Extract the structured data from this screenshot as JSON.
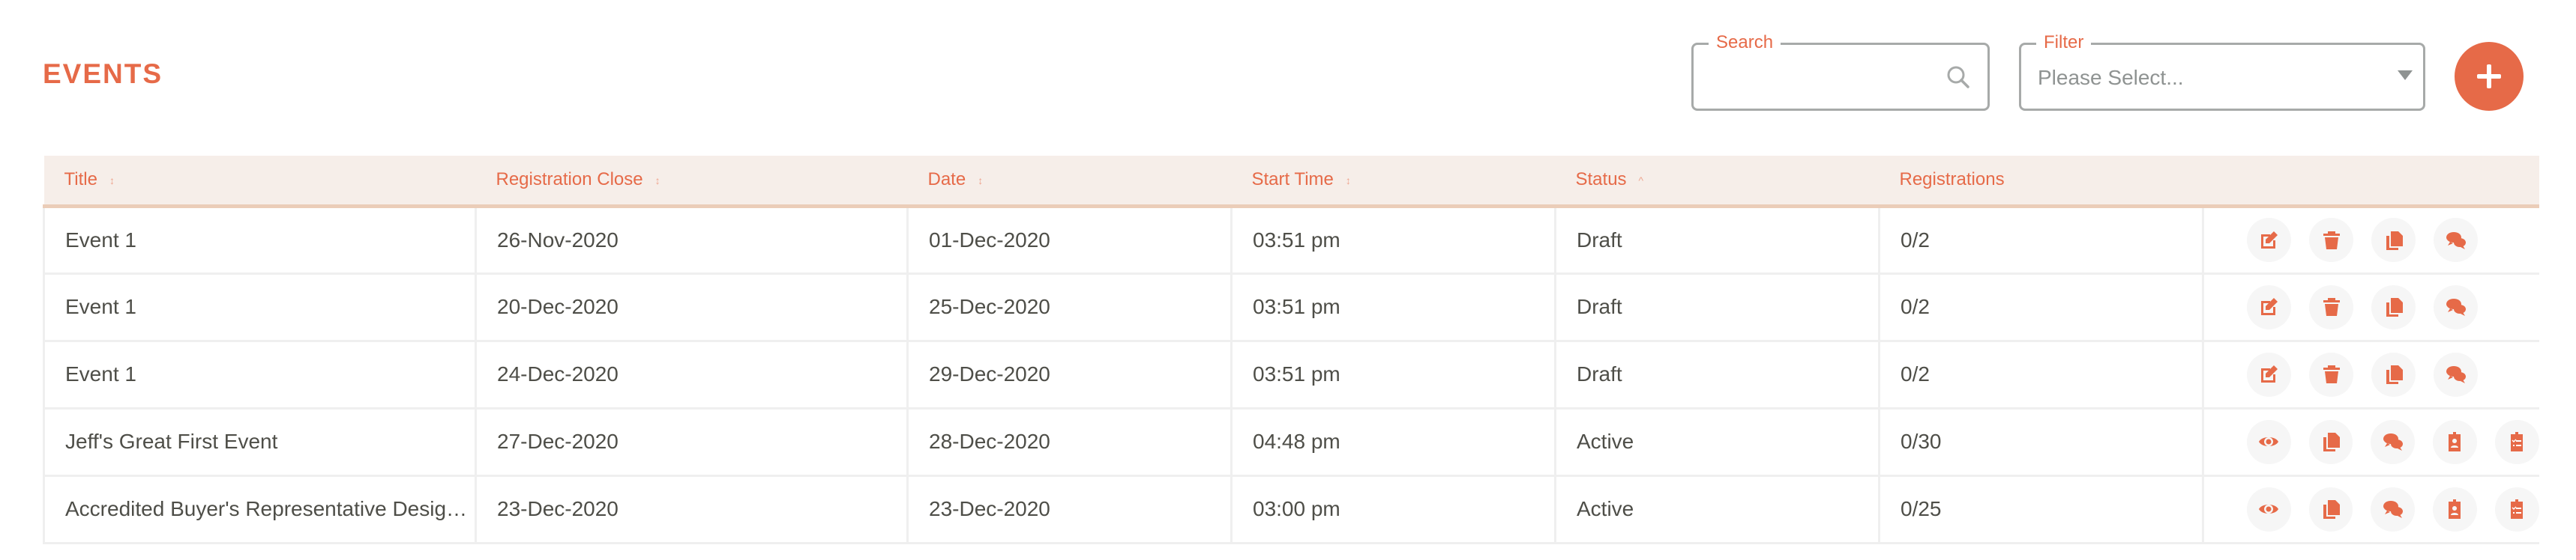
{
  "header": {
    "title": "EVENTS"
  },
  "search": {
    "label": "Search",
    "value": "",
    "icon": "search-icon"
  },
  "filter": {
    "label": "Filter",
    "placeholder": "Please Select..."
  },
  "add_button": {
    "icon": "plus-icon"
  },
  "colors": {
    "accent": "#e66a48",
    "header_bg": "#f6eee9",
    "header_border": "#ebcdb8"
  },
  "table": {
    "columns": [
      {
        "label": "Title",
        "sort": "both"
      },
      {
        "label": "Registration Close",
        "sort": "both"
      },
      {
        "label": "Date",
        "sort": "both"
      },
      {
        "label": "Start Time",
        "sort": "both"
      },
      {
        "label": "Status",
        "sort": "asc"
      },
      {
        "label": "Registrations",
        "sort": "none"
      },
      {
        "label": "",
        "sort": "none"
      }
    ],
    "rows": [
      {
        "title": "Event 1",
        "reg_close": "26-Nov-2020",
        "date": "01-Dec-2020",
        "start": "03:51 pm",
        "status": "Draft",
        "registrations": "0/2",
        "actions": [
          "edit",
          "delete",
          "copy",
          "comments"
        ]
      },
      {
        "title": "Event 1",
        "reg_close": "20-Dec-2020",
        "date": "25-Dec-2020",
        "start": "03:51 pm",
        "status": "Draft",
        "registrations": "0/2",
        "actions": [
          "edit",
          "delete",
          "copy",
          "comments"
        ]
      },
      {
        "title": "Event 1",
        "reg_close": "24-Dec-2020",
        "date": "29-Dec-2020",
        "start": "03:51 pm",
        "status": "Draft",
        "registrations": "0/2",
        "actions": [
          "edit",
          "delete",
          "copy",
          "comments"
        ]
      },
      {
        "title": "Jeff's Great First Event",
        "reg_close": "27-Dec-2020",
        "date": "28-Dec-2020",
        "start": "04:48 pm",
        "status": "Active",
        "registrations": "0/30",
        "actions": [
          "view",
          "copy",
          "comments",
          "attendees",
          "checklist"
        ]
      },
      {
        "title": "Accredited Buyer's Representative Designation",
        "reg_close": "23-Dec-2020",
        "date": "23-Dec-2020",
        "start": "03:00 pm",
        "status": "Active",
        "registrations": "0/25",
        "actions": [
          "view",
          "copy",
          "comments",
          "attendees",
          "checklist"
        ]
      }
    ]
  }
}
